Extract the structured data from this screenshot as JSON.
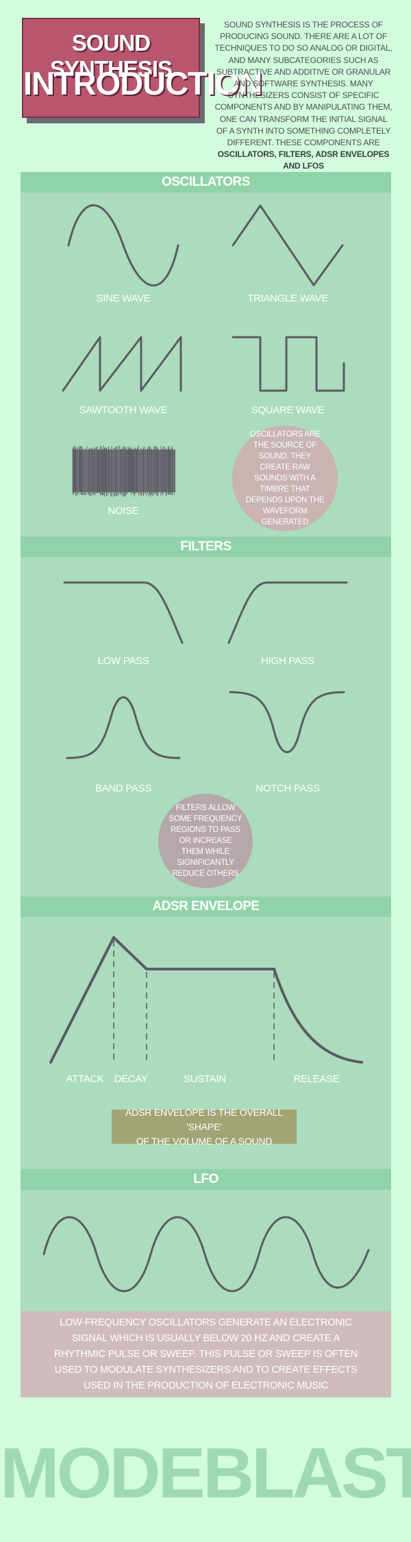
{
  "header": {
    "title_line1": "SOUND SYNTHESIS",
    "title_line2": "INTRODUCTION",
    "intro_text": "SOUND SYNTHESIS IS THE PROCESS OF PRODUCING SOUND. THERE ARE A LOT  OF TECHNIQUES TO DO SO ANALOG OR DIGITAL, AND MANY SUBCATEGORIES SUCH AS SUBTRACTIVE AND ADDITIVE  OR GRANULAR AND SOFTWARE SYNTHESIS. MANY SYNTHESIZERS CONSIST OF SPECIFIC COMPONENTS AND BY MANIPULATING THEM, ONE CAN TRANSFORM THE INITIAL SIGNAL OF A SYNTH INTO SOMETHING COMPLETELY DIFFERENT. THESE COMPONENTS ARE",
    "intro_bold": "OSCILLATORS, FILTERS, ADSR ENVELOPES AND LFOS"
  },
  "oscillators": {
    "heading": "OSCILLATORS",
    "sine": "SINE WAVE",
    "triangle": "TRIANGLE WAVE",
    "sawtooth": "SAWTOOTH WAVE",
    "square": "SQUARE WAVE",
    "noise": "NOISE",
    "note": "OSCILLATORS ARE THE SOURCE OF SOUND. THEY CREATE RAW SOUNDS WITH A TIMBRE  THAT DEPENDS UPON THE WAVEFORM GENERATED"
  },
  "filters": {
    "heading": "FILTERS",
    "low_pass": "LOW PASS",
    "high_pass": "HIGH PASS",
    "band_pass": "BAND PASS",
    "notch_pass": "NOTCH PASS",
    "note": "FILTERS ALLOW SOME FREQUENCY REGIONS TO PASS OR INCREASE THEM WHILE SIGNIFICANTLY REDUCE OTHERS"
  },
  "adsr": {
    "heading": "ADSR ENVELOPE",
    "attack": "ATTACK",
    "decay": "DECAY",
    "sustain": "SUSTAIN",
    "release": "RELEASE",
    "note_line1": "ADSR ENVELOPE IS THE OVERALL 'SHAPE'",
    "note_line2": "OF THE VOLUME OF A SOUND"
  },
  "lfo": {
    "heading": "LFO",
    "note": "LOW-FREQUENCY OSCILLATORS GENERATE AN ELECTRONIC SIGNAL WHICH IS USUALLY BELOW 20 HZ AND CREATE A RHYTHMIC PULSE OR SWEEP. THIS PULSE OR SWEEP IS OFTEN USED TO MODULATE SYNTHESIZERS AND TO CREATE EFFECTS USED IN THE PRODUCTION OF ELECTRONIC MUSIC"
  },
  "footer": {
    "logo_text": "MODEBLAST"
  },
  "colors": {
    "background": "#d2fcdc",
    "title_box": "#b8566d",
    "section_band": "#91d3a8",
    "panel": "#abdcbd",
    "wave_stroke": "#5b5b63",
    "osc_note": "#c9b3b3",
    "filter_note": "#b6a8aa",
    "adsr_note": "#a1a574",
    "lfo_note": "#cfbdbd",
    "logo": "#9fd9b3"
  }
}
